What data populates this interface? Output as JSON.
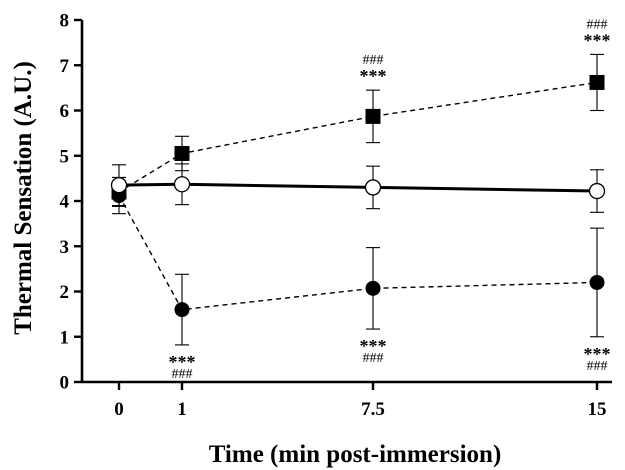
{
  "chart_data": {
    "type": "line",
    "title": "",
    "xlabel": "Time (min post-immersion)",
    "ylabel": "Thermal Sensation (A.U.)",
    "ylim": [
      0,
      8
    ],
    "yticks": [
      0,
      1,
      2,
      3,
      4,
      5,
      6,
      7,
      8
    ],
    "x_categories": [
      "0",
      "1",
      "7.5",
      "15"
    ],
    "x": [
      0,
      1,
      7.5,
      15
    ],
    "series": [
      {
        "marker": "open-circle",
        "line": "solid",
        "color": "#000000",
        "x": [
          0,
          1,
          7.5,
          15
        ],
        "y": [
          4.35,
          4.37,
          4.3,
          4.22
        ],
        "err": [
          0.45,
          0.45,
          0.47,
          0.47
        ]
      },
      {
        "marker": "filled-square",
        "line": "dashed",
        "color": "#000000",
        "x": [
          0,
          1,
          7.5,
          15
        ],
        "y": [
          4.2,
          5.05,
          5.87,
          6.62
        ],
        "err": [
          0.32,
          0.38,
          0.58,
          0.62
        ]
      },
      {
        "marker": "filled-circle",
        "line": "dashed",
        "color": "#000000",
        "x": [
          0,
          1,
          7.5,
          15
        ],
        "y": [
          4.12,
          1.6,
          2.07,
          2.2
        ],
        "err": [
          0.4,
          0.78,
          0.9,
          1.2
        ]
      }
    ],
    "annotations": [
      {
        "x": 1,
        "position": "below",
        "lines": [
          "***",
          "###"
        ]
      },
      {
        "x": 7.5,
        "position": "below",
        "lines": [
          "***",
          "###"
        ]
      },
      {
        "x": 15,
        "position": "below",
        "lines": [
          "***",
          "###"
        ]
      },
      {
        "x": 7.5,
        "position": "above",
        "lines": [
          "###",
          "***"
        ]
      },
      {
        "x": 15,
        "position": "above",
        "lines": [
          "###",
          "***"
        ]
      }
    ]
  }
}
